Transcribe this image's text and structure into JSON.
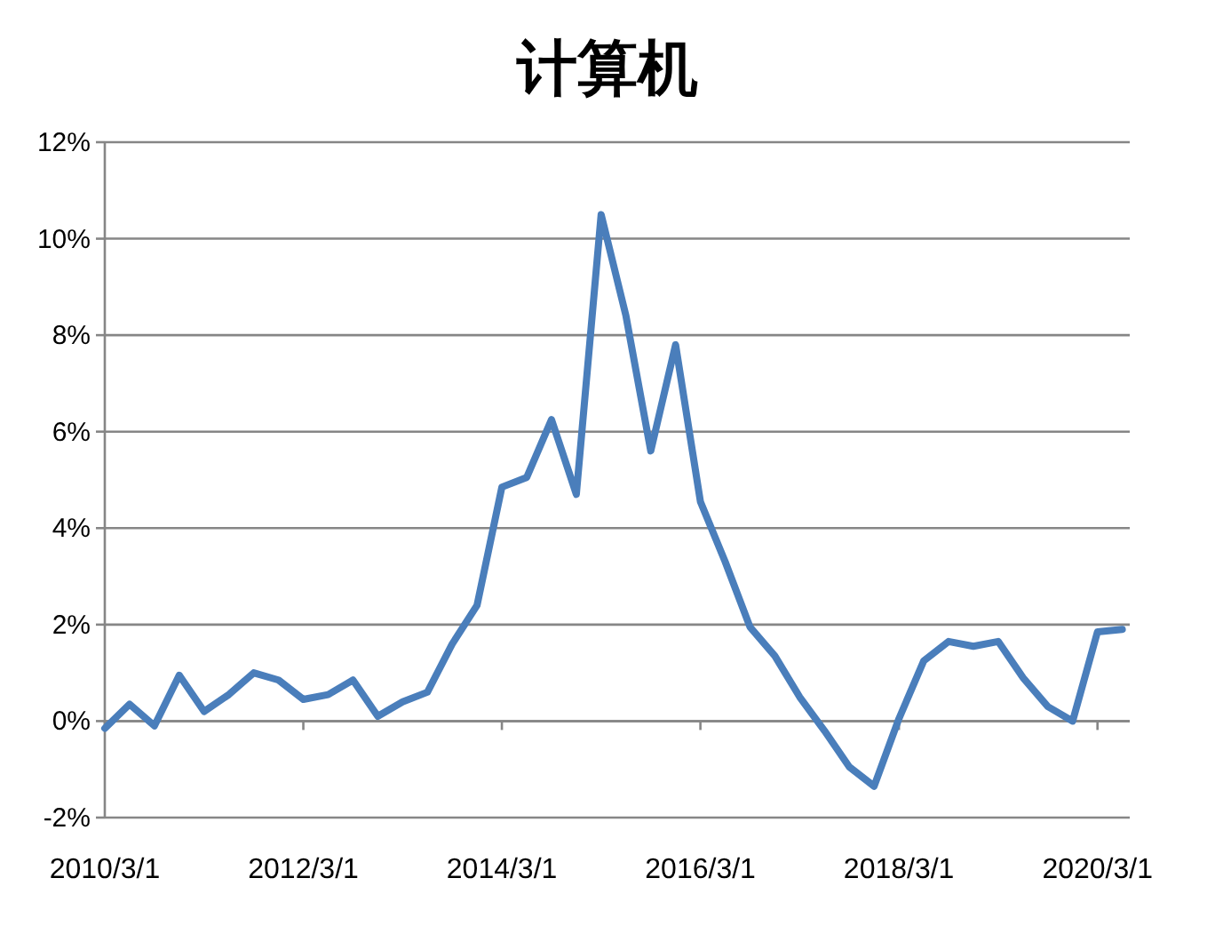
{
  "chart_data": {
    "type": "line",
    "title": "计算机",
    "categories": [
      "2010/3/1",
      null,
      null,
      null,
      null,
      null,
      null,
      null,
      "2012/3/1",
      null,
      null,
      null,
      null,
      null,
      null,
      null,
      "2014/3/1",
      null,
      null,
      null,
      null,
      null,
      null,
      null,
      "2016/3/1",
      null,
      null,
      null,
      null,
      null,
      null,
      null,
      "2018/3/1",
      null,
      null,
      null,
      null,
      null,
      null,
      null,
      "2020/3/1",
      null
    ],
    "series": [
      {
        "color": "#4a7ebb",
        "values": [
          -0.15,
          0.35,
          -0.1,
          0.95,
          0.2,
          0.55,
          1.0,
          0.85,
          0.45,
          0.55,
          0.85,
          0.1,
          0.4,
          0.6,
          1.6,
          2.4,
          4.85,
          5.05,
          6.25,
          4.7,
          10.5,
          8.4,
          5.6,
          7.8,
          4.55,
          3.3,
          1.95,
          1.35,
          0.5,
          -0.2,
          -0.95,
          -1.35,
          0.05,
          1.25,
          1.65,
          1.55,
          1.65,
          0.9,
          0.3,
          0.0,
          1.85,
          1.9
        ]
      }
    ],
    "ylim": [
      -2,
      12
    ],
    "yticks": [
      {
        "value": -2,
        "label": "-2%"
      },
      {
        "value": 0,
        "label": "0%"
      },
      {
        "value": 2,
        "label": "2%"
      },
      {
        "value": 4,
        "label": "4%"
      },
      {
        "value": 6,
        "label": "6%"
      },
      {
        "value": 8,
        "label": "8%"
      },
      {
        "value": 10,
        "label": "10%"
      },
      {
        "value": 12,
        "label": "12%"
      }
    ],
    "grid": "y",
    "marker": "none",
    "line_style": "solid"
  }
}
